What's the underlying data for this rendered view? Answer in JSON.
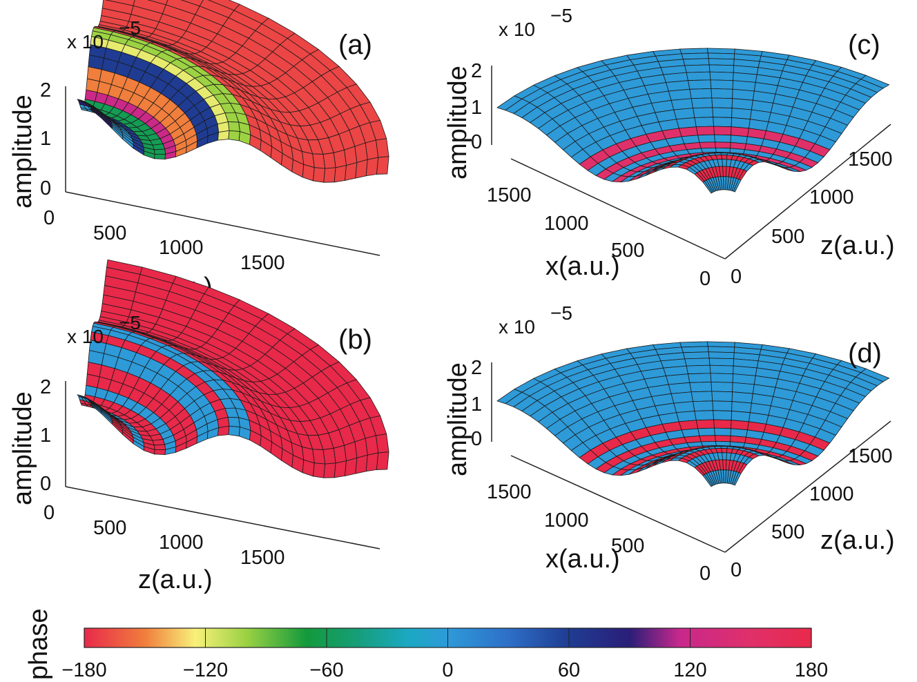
{
  "colorbar": {
    "title": "phase",
    "ticks": [
      "−180",
      "−120",
      "−60",
      "0",
      "60",
      "120",
      "180"
    ],
    "tick_values": [
      -180,
      -120,
      -60,
      0,
      60,
      120,
      180
    ],
    "range": [
      -180,
      180
    ],
    "colormap_stops": [
      {
        "v": -180,
        "color": "#e8294a"
      },
      {
        "v": -150,
        "color": "#f07e3c"
      },
      {
        "v": -125,
        "color": "#f8f07a"
      },
      {
        "v": -100,
        "color": "#9cd243"
      },
      {
        "v": -70,
        "color": "#139a3c"
      },
      {
        "v": -45,
        "color": "#169e78"
      },
      {
        "v": -20,
        "color": "#1ba8c2"
      },
      {
        "v": 0,
        "color": "#2e9ad8"
      },
      {
        "v": 30,
        "color": "#2e6fc8"
      },
      {
        "v": 60,
        "color": "#1f3c92"
      },
      {
        "v": 90,
        "color": "#2a1e78"
      },
      {
        "v": 115,
        "color": "#c8288c"
      },
      {
        "v": 150,
        "color": "#e0306a"
      },
      {
        "v": 180,
        "color": "#e8294a"
      }
    ]
  },
  "chart_data": [
    {
      "type": "surface",
      "panel": "(a)",
      "zlabel": "amplitude",
      "exponent_base": "x 10",
      "exponent_power": "−5",
      "z_ticks": [
        "0",
        "1",
        "2"
      ],
      "z_range": [
        0,
        2.4
      ],
      "x_ticks": [
        "0",
        "500",
        "1000",
        "1500"
      ],
      "xlabel": "z(a.u.)",
      "x_range": [
        0,
        2000
      ],
      "color_by": "phase",
      "inner_phase_sequence": [
        90,
        0,
        60,
        -60,
        120,
        -150,
        60,
        -120,
        -100
      ],
      "outer_phase": -170
    },
    {
      "type": "surface",
      "panel": "(b)",
      "zlabel": "amplitude",
      "exponent_base": "x 10",
      "exponent_power": "−5",
      "z_ticks": [
        "0",
        "1",
        "2"
      ],
      "z_range": [
        0,
        2.4
      ],
      "x_ticks": [
        "0",
        "500",
        "1000",
        "1500"
      ],
      "xlabel": "z(a.u.)",
      "x_range": [
        0,
        2000
      ],
      "color_by": "phase",
      "inner_phase_sequence": [
        0,
        180,
        0,
        180,
        0,
        180,
        0,
        180,
        0
      ],
      "outer_phase": 180
    },
    {
      "type": "surface",
      "panel": "(c)",
      "zlabel": "amplitude",
      "exponent_base": "x 10",
      "exponent_power": "−5",
      "z_ticks": [
        "0",
        "1",
        "2"
      ],
      "x_ticks": [
        "1500",
        "1000",
        "500",
        "0"
      ],
      "xlabel": "x(a.u.)",
      "y_ticks": [
        "1500",
        "1000",
        "500",
        "0"
      ],
      "ylabel": "z(a.u.)",
      "color_by": "phase",
      "back_phase": 0,
      "middle_phase": 150
    },
    {
      "type": "surface",
      "panel": "(d)",
      "zlabel": "amplitude",
      "exponent_base": "x 10",
      "exponent_power": "−5",
      "z_ticks": [
        "0",
        "1",
        "2"
      ],
      "x_ticks": [
        "1500",
        "1000",
        "500",
        "0"
      ],
      "xlabel": "x(a.u.)",
      "y_ticks": [
        "1500",
        "1000",
        "500",
        "0"
      ],
      "ylabel": "z(a.u.)",
      "color_by": "phase",
      "back_phase": 0,
      "middle_phase": 180
    }
  ]
}
